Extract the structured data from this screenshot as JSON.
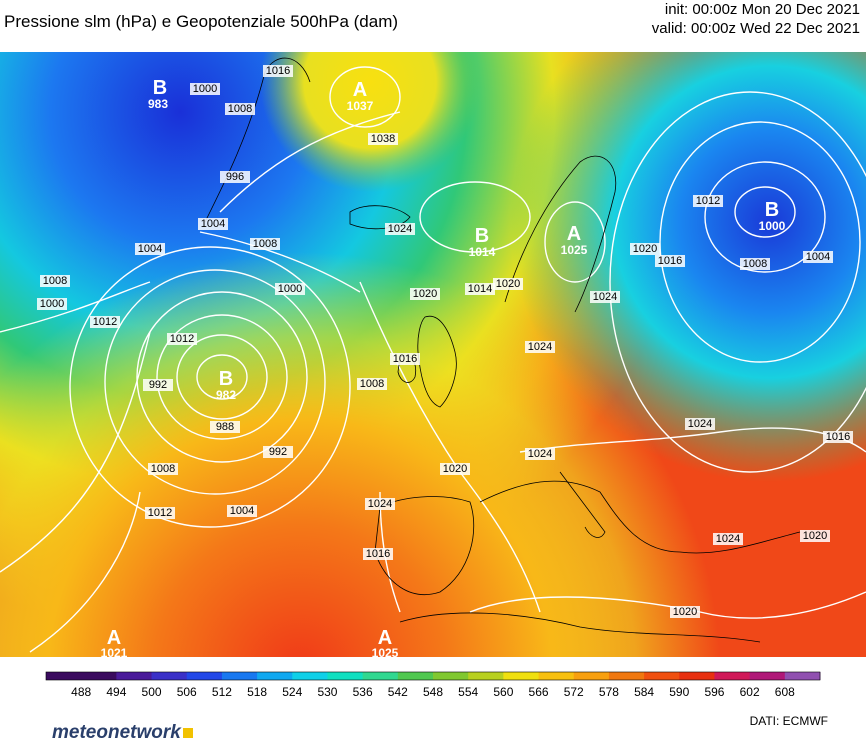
{
  "title": "Pressione slm (hPa) e Geopotenziale 500hPa (dam)",
  "init": "init: 00:00z Mon 20 Dec 2021",
  "valid": "valid: 00:00z Wed 22 Dec 2021",
  "legend": {
    "values": [
      "488",
      "494",
      "500",
      "506",
      "512",
      "518",
      "524",
      "530",
      "536",
      "542",
      "548",
      "554",
      "560",
      "566",
      "572",
      "578",
      "584",
      "590",
      "596",
      "602",
      "608"
    ],
    "colors": [
      "#3a0a5e",
      "#4a1a9a",
      "#3a30c8",
      "#2248e8",
      "#1878f0",
      "#10a8f0",
      "#10d0e8",
      "#10e0c0",
      "#30d890",
      "#50c850",
      "#80c830",
      "#b8d020",
      "#f0e010",
      "#f8c010",
      "#f8a010",
      "#f07810",
      "#f05010",
      "#e83010",
      "#d01858",
      "#b01878",
      "#9050b0"
    ]
  },
  "pressure_systems": [
    {
      "type": "B",
      "value": "983"
    },
    {
      "type": "A",
      "value": "1037"
    },
    {
      "type": "B",
      "value": "1014"
    },
    {
      "type": "A",
      "value": "1025"
    },
    {
      "type": "B",
      "value": "1000"
    },
    {
      "type": "B",
      "value": "982"
    },
    {
      "type": "A",
      "value": "1021"
    },
    {
      "type": "A",
      "value": "1025"
    }
  ],
  "isobar_labels": [
    "1000",
    "1016",
    "1008",
    "996",
    "1004",
    "1008",
    "1038",
    "1024",
    "1020",
    "1014",
    "1012",
    "1004",
    "1000",
    "1008",
    "1012",
    "992",
    "1000",
    "988",
    "992",
    "1008",
    "1012",
    "1004",
    "1016",
    "1020",
    "1016",
    "1008",
    "1020",
    "1024",
    "1024",
    "1020",
    "1024",
    "1024",
    "1024",
    "1020",
    "1016",
    "1008",
    "1004",
    "1012",
    "1024",
    "1016",
    "1020"
  ],
  "logo": "meteonetwork",
  "source": "DATI:  ECMWF"
}
